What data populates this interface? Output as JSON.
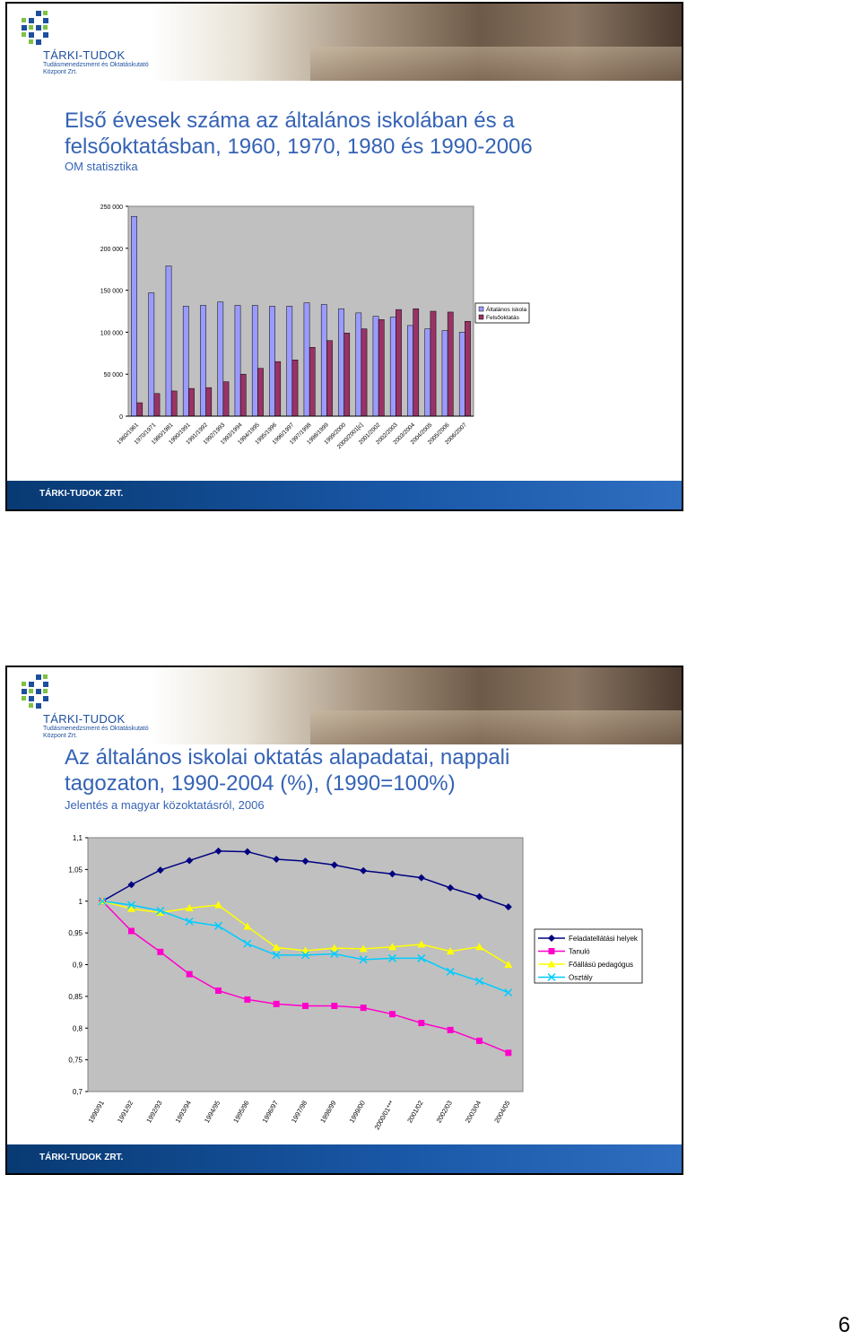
{
  "page_number": "6",
  "brand": {
    "name": "TÁRKI-TUDOK",
    "sub1": "Tudásmenedzsment és Oktatáskutató",
    "sub2": "Központ Zrt.",
    "footer": "TÁRKI-TUDOK ZRT."
  },
  "slide1": {
    "title_line1": "Első évesek száma az általános iskolában és a",
    "title_line2": "felsőoktatásban, 1960, 1970, 1980 és 1990-2006",
    "subtitle": "OM statisztika"
  },
  "slide2": {
    "title_line1": "Az általános iskolai oktatás alapadatai, nappali",
    "title_line2": "tagozaton, 1990-2004 (%), (1990=100%)",
    "subtitle": "Jelentés a magyar közoktatásról, 2006"
  },
  "chart_data": [
    {
      "type": "bar",
      "categories": [
        "1960/1961",
        "1970/1971",
        "1980/1981",
        "1990/1991",
        "1991/1992",
        "1992/1993",
        "1993/1994",
        "1994/1995",
        "1995/1996",
        "1996/1997",
        "1997/1998",
        "1998/1999",
        "1999/2000",
        "2000/2001[c]",
        "2001/2002",
        "2002/2003",
        "2003/2004",
        "2004/2005",
        "2005/2006",
        "2006/2007"
      ],
      "series": [
        {
          "name": "Általános iskola",
          "color": "#9b9bff",
          "values": [
            238000,
            147000,
            179000,
            131000,
            132000,
            136000,
            132000,
            132000,
            131000,
            131000,
            135000,
            133000,
            128000,
            123000,
            119000,
            118000,
            108000,
            104000,
            102000,
            100000
          ]
        },
        {
          "name": "Felsőoktatás",
          "color": "#993366",
          "values": [
            16000,
            27000,
            30000,
            33000,
            34000,
            41000,
            50000,
            57000,
            65000,
            67000,
            82000,
            90000,
            99000,
            104000,
            115000,
            127000,
            128000,
            125000,
            124000,
            113000
          ]
        }
      ],
      "y_ticks": [
        "0",
        "50 000",
        "100 000",
        "150 000",
        "200 000",
        "250 000"
      ],
      "ylim": [
        0,
        250000
      ],
      "legend_position": "right"
    },
    {
      "type": "line",
      "x": [
        "1990/91",
        "1991/92",
        "1992/93",
        "1993/94",
        "1994/95",
        "1995/96",
        "1996/97",
        "1997/98",
        "1998/99",
        "1999/00",
        "2000/01***",
        "2001/02",
        "2002/03",
        "2003/04",
        "2004/05"
      ],
      "series": [
        {
          "name": "Feladatellátási helyek",
          "color": "#000080",
          "marker": "diamond",
          "values": [
            1.0,
            1.026,
            1.049,
            1.064,
            1.079,
            1.078,
            1.066,
            1.063,
            1.057,
            1.048,
            1.043,
            1.037,
            1.021,
            1.007,
            0.991
          ]
        },
        {
          "name": "Tanuló",
          "color": "#ff00cc",
          "marker": "square",
          "values": [
            1.0,
            0.953,
            0.92,
            0.885,
            0.859,
            0.845,
            0.838,
            0.835,
            0.835,
            0.832,
            0.822,
            0.808,
            0.797,
            0.78,
            0.761
          ]
        },
        {
          "name": "Főállású pedagógus",
          "color": "#ffff00",
          "marker": "triangle",
          "values": [
            1.0,
            0.988,
            0.982,
            0.989,
            0.994,
            0.96,
            0.927,
            0.922,
            0.926,
            0.925,
            0.928,
            0.932,
            0.921,
            0.928,
            0.9
          ]
        },
        {
          "name": "Osztály",
          "color": "#00ccff",
          "marker": "x",
          "values": [
            1.0,
            0.994,
            0.985,
            0.968,
            0.961,
            0.933,
            0.915,
            0.915,
            0.917,
            0.908,
            0.91,
            0.91,
            0.889,
            0.874,
            0.856
          ]
        }
      ],
      "y_ticks": [
        "0,7",
        "0,75",
        "0,8",
        "0,85",
        "0,9",
        "0,95",
        "1",
        "1,05",
        "1,1"
      ],
      "ylim": [
        0.7,
        1.1
      ],
      "legend_position": "right",
      "grid": false
    }
  ]
}
